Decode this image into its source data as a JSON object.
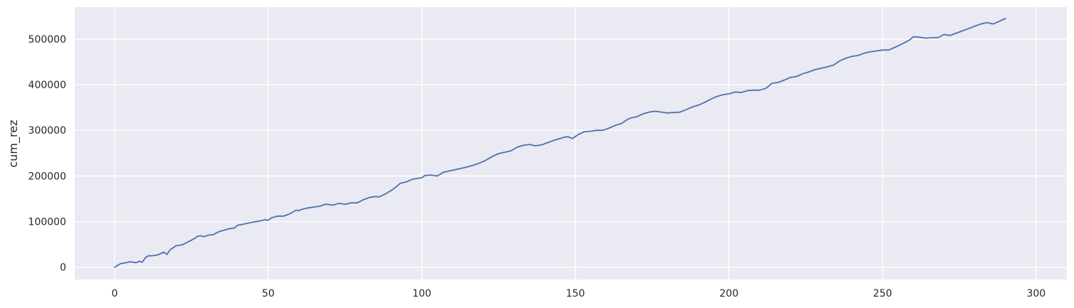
{
  "chart_data": {
    "type": "line",
    "title": "",
    "xlabel": "",
    "ylabel": "cum_rez",
    "xlim": [
      -13,
      310
    ],
    "ylim": [
      -27000,
      570000
    ],
    "x_ticks": [
      0,
      50,
      100,
      150,
      200,
      250,
      300
    ],
    "y_ticks": [
      0,
      100000,
      200000,
      300000,
      400000,
      500000
    ],
    "grid": true,
    "background_color": "#eaeaf2",
    "line_color": "#4c72b0",
    "series": [
      {
        "name": "cum_rez",
        "x": [
          0,
          2,
          3,
          5,
          7,
          8,
          9,
          10,
          11,
          12,
          14,
          16,
          17,
          18,
          20,
          22,
          24,
          26,
          27,
          28,
          29,
          31,
          32,
          34,
          35,
          37,
          39,
          40,
          41,
          43,
          45,
          47,
          49,
          50,
          51,
          53,
          55,
          57,
          59,
          60,
          61,
          63,
          65,
          67,
          68,
          69,
          71,
          73,
          75,
          77,
          79,
          81,
          83,
          85,
          86,
          88,
          90,
          92,
          93,
          95,
          97,
          100,
          101,
          103,
          105,
          107,
          109,
          111,
          113,
          115,
          117,
          119,
          121,
          123,
          125,
          127,
          129,
          131,
          133,
          135,
          137,
          139,
          141,
          143,
          145,
          147,
          148,
          149,
          151,
          153,
          155,
          157,
          159,
          161,
          163,
          165,
          167,
          168,
          170,
          172,
          174,
          176,
          178,
          180,
          182,
          184,
          186,
          188,
          190,
          192,
          194,
          196,
          198,
          200,
          202,
          204,
          206,
          208,
          210,
          212,
          214,
          216,
          218,
          220,
          222,
          224,
          226,
          228,
          230,
          232,
          234,
          236,
          238,
          240,
          242,
          244,
          246,
          248,
          250,
          252,
          254,
          256,
          258,
          259,
          260,
          262,
          264,
          266,
          268,
          270,
          272,
          274,
          276,
          278,
          280,
          282,
          284,
          286,
          288,
          290
        ],
        "y": [
          0,
          8000,
          9000,
          12000,
          10000,
          13000,
          11000,
          21000,
          25000,
          25000,
          27000,
          33000,
          28000,
          38000,
          47000,
          49000,
          56000,
          63000,
          68000,
          69000,
          67000,
          71000,
          71000,
          78000,
          80000,
          84000,
          86000,
          92000,
          93000,
          96000,
          99000,
          101000,
          104000,
          103000,
          108000,
          112000,
          112000,
          117000,
          125000,
          124000,
          127000,
          130000,
          132000,
          134000,
          137000,
          138000,
          136000,
          140000,
          138000,
          141000,
          141000,
          148000,
          153000,
          155000,
          154000,
          160000,
          168000,
          178000,
          184000,
          187000,
          193000,
          196000,
          201000,
          202000,
          200000,
          208000,
          211000,
          214000,
          217000,
          220000,
          224000,
          229000,
          235000,
          243000,
          249000,
          252000,
          255000,
          263000,
          267000,
          269000,
          266000,
          268000,
          273000,
          278000,
          282000,
          286000,
          285000,
          282000,
          291000,
          297000,
          298000,
          300000,
          300000,
          305000,
          311000,
          315000,
          324000,
          327000,
          330000,
          336000,
          340000,
          342000,
          340000,
          338000,
          339000,
          340000,
          345000,
          351000,
          355000,
          361000,
          368000,
          374000,
          378000,
          380000,
          384000,
          383000,
          387000,
          388000,
          388000,
          392000,
          403000,
          405000,
          410000,
          416000,
          418000,
          424000,
          428000,
          433000,
          436000,
          439000,
          443000,
          452000,
          458000,
          462000,
          464000,
          469000,
          472000,
          474000,
          476000,
          476000,
          482000,
          488000,
          495000,
          499000,
          505000,
          504000,
          502000,
          503000,
          503000,
          510000,
          508000,
          513000,
          518000,
          523000,
          528000,
          533000,
          536000,
          533000,
          539000,
          545000
        ]
      }
    ]
  }
}
